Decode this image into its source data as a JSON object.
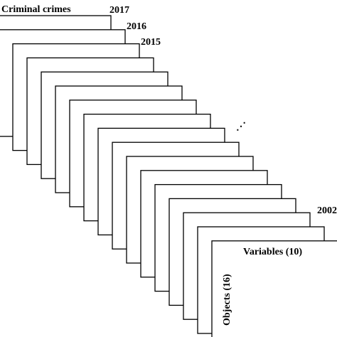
{
  "title": "Criminal crimes",
  "years": [
    "2017",
    "2016",
    "2015",
    "2002"
  ],
  "ellipsis": "⋰",
  "last_sheet": {
    "columns_label": "Variables (10)",
    "rows_label": "Objects (16)"
  }
}
